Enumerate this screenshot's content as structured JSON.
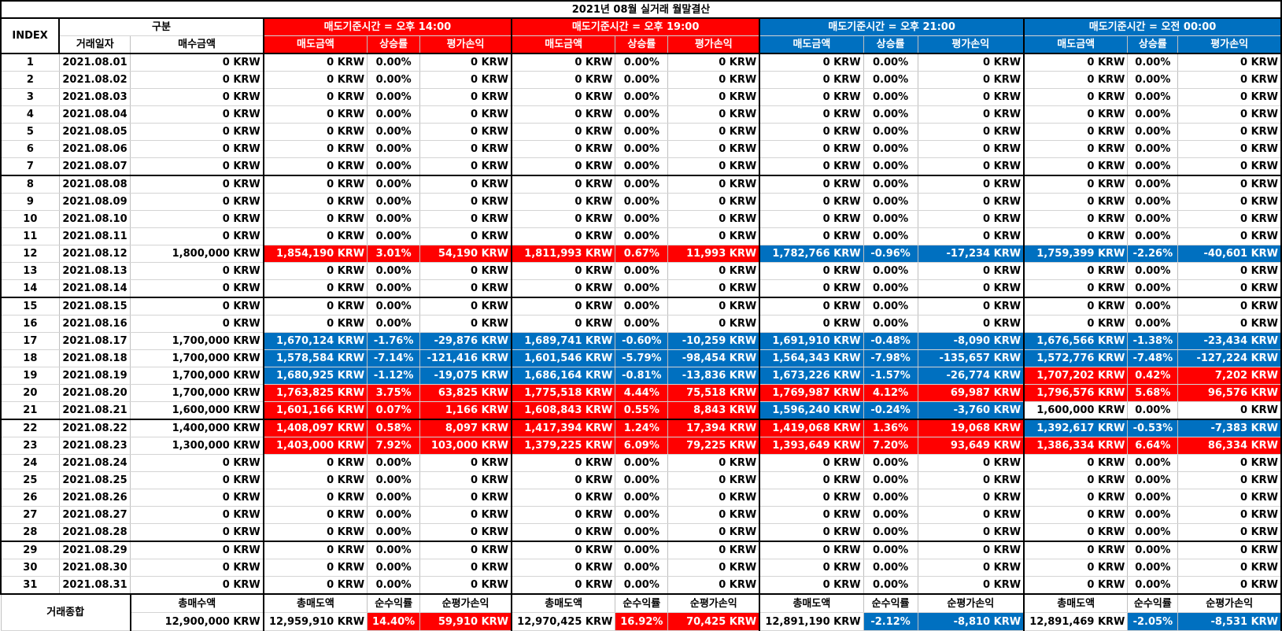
{
  "title": "2021년 08월 실거래 월말결산",
  "colors": {
    "red": "#ff0000",
    "blue": "#0070c0",
    "border": "#000000"
  },
  "header": {
    "index": "INDEX",
    "gubun": "구분",
    "date": "거래일자",
    "buy": "매수금액",
    "groups": [
      {
        "title": "매도기준시간 = 오후 14:00",
        "color": "red"
      },
      {
        "title": "매도기준시간 = 오후 19:00",
        "color": "red"
      },
      {
        "title": "매도기준시간 = 오후 21:00",
        "color": "blue"
      },
      {
        "title": "매도기준시간 = 오전 00:00",
        "color": "blue"
      }
    ],
    "sub": [
      "매도금액",
      "상승률",
      "평가손익"
    ]
  },
  "rows": [
    {
      "i": "1",
      "date": "2021.08.01",
      "buy": "0 KRW",
      "g": [
        [
          "0 KRW",
          "0.00%",
          "0 KRW",
          ""
        ],
        [
          "0 KRW",
          "0.00%",
          "0 KRW",
          ""
        ],
        [
          "0 KRW",
          "0.00%",
          "0 KRW",
          ""
        ],
        [
          "0 KRW",
          "0.00%",
          "0 KRW",
          ""
        ]
      ]
    },
    {
      "i": "2",
      "date": "2021.08.02",
      "buy": "0 KRW",
      "g": [
        [
          "0 KRW",
          "0.00%",
          "0 KRW",
          ""
        ],
        [
          "0 KRW",
          "0.00%",
          "0 KRW",
          ""
        ],
        [
          "0 KRW",
          "0.00%",
          "0 KRW",
          ""
        ],
        [
          "0 KRW",
          "0.00%",
          "0 KRW",
          ""
        ]
      ]
    },
    {
      "i": "3",
      "date": "2021.08.03",
      "buy": "0 KRW",
      "g": [
        [
          "0 KRW",
          "0.00%",
          "0 KRW",
          ""
        ],
        [
          "0 KRW",
          "0.00%",
          "0 KRW",
          ""
        ],
        [
          "0 KRW",
          "0.00%",
          "0 KRW",
          ""
        ],
        [
          "0 KRW",
          "0.00%",
          "0 KRW",
          ""
        ]
      ]
    },
    {
      "i": "4",
      "date": "2021.08.04",
      "buy": "0 KRW",
      "g": [
        [
          "0 KRW",
          "0.00%",
          "0 KRW",
          ""
        ],
        [
          "0 KRW",
          "0.00%",
          "0 KRW",
          ""
        ],
        [
          "0 KRW",
          "0.00%",
          "0 KRW",
          ""
        ],
        [
          "0 KRW",
          "0.00%",
          "0 KRW",
          ""
        ]
      ]
    },
    {
      "i": "5",
      "date": "2021.08.05",
      "buy": "0 KRW",
      "g": [
        [
          "0 KRW",
          "0.00%",
          "0 KRW",
          ""
        ],
        [
          "0 KRW",
          "0.00%",
          "0 KRW",
          ""
        ],
        [
          "0 KRW",
          "0.00%",
          "0 KRW",
          ""
        ],
        [
          "0 KRW",
          "0.00%",
          "0 KRW",
          ""
        ]
      ]
    },
    {
      "i": "6",
      "date": "2021.08.06",
      "buy": "0 KRW",
      "g": [
        [
          "0 KRW",
          "0.00%",
          "0 KRW",
          ""
        ],
        [
          "0 KRW",
          "0.00%",
          "0 KRW",
          ""
        ],
        [
          "0 KRW",
          "0.00%",
          "0 KRW",
          ""
        ],
        [
          "0 KRW",
          "0.00%",
          "0 KRW",
          ""
        ]
      ]
    },
    {
      "i": "7",
      "date": "2021.08.07",
      "buy": "0 KRW",
      "g": [
        [
          "0 KRW",
          "0.00%",
          "0 KRW",
          ""
        ],
        [
          "0 KRW",
          "0.00%",
          "0 KRW",
          ""
        ],
        [
          "0 KRW",
          "0.00%",
          "0 KRW",
          ""
        ],
        [
          "0 KRW",
          "0.00%",
          "0 KRW",
          ""
        ]
      ]
    },
    {
      "i": "8",
      "date": "2021.08.08",
      "buy": "0 KRW",
      "g": [
        [
          "0 KRW",
          "0.00%",
          "0 KRW",
          ""
        ],
        [
          "0 KRW",
          "0.00%",
          "0 KRW",
          ""
        ],
        [
          "0 KRW",
          "0.00%",
          "0 KRW",
          ""
        ],
        [
          "0 KRW",
          "0.00%",
          "0 KRW",
          ""
        ]
      ]
    },
    {
      "i": "9",
      "date": "2021.08.09",
      "buy": "0 KRW",
      "g": [
        [
          "0 KRW",
          "0.00%",
          "0 KRW",
          ""
        ],
        [
          "0 KRW",
          "0.00%",
          "0 KRW",
          ""
        ],
        [
          "0 KRW",
          "0.00%",
          "0 KRW",
          ""
        ],
        [
          "0 KRW",
          "0.00%",
          "0 KRW",
          ""
        ]
      ]
    },
    {
      "i": "10",
      "date": "2021.08.10",
      "buy": "0 KRW",
      "g": [
        [
          "0 KRW",
          "0.00%",
          "0 KRW",
          ""
        ],
        [
          "0 KRW",
          "0.00%",
          "0 KRW",
          ""
        ],
        [
          "0 KRW",
          "0.00%",
          "0 KRW",
          ""
        ],
        [
          "0 KRW",
          "0.00%",
          "0 KRW",
          ""
        ]
      ]
    },
    {
      "i": "11",
      "date": "2021.08.11",
      "buy": "0 KRW",
      "g": [
        [
          "0 KRW",
          "0.00%",
          "0 KRW",
          ""
        ],
        [
          "0 KRW",
          "0.00%",
          "0 KRW",
          ""
        ],
        [
          "0 KRW",
          "0.00%",
          "0 KRW",
          ""
        ],
        [
          "0 KRW",
          "0.00%",
          "0 KRW",
          ""
        ]
      ]
    },
    {
      "i": "12",
      "date": "2021.08.12",
      "buy": "1,800,000 KRW",
      "g": [
        [
          "1,854,190 KRW",
          "3.01%",
          "54,190 KRW",
          "red"
        ],
        [
          "1,811,993 KRW",
          "0.67%",
          "11,993 KRW",
          "red"
        ],
        [
          "1,782,766 KRW",
          "-0.96%",
          "-17,234 KRW",
          "blue"
        ],
        [
          "1,759,399 KRW",
          "-2.26%",
          "-40,601 KRW",
          "blue"
        ]
      ]
    },
    {
      "i": "13",
      "date": "2021.08.13",
      "buy": "0 KRW",
      "g": [
        [
          "0 KRW",
          "0.00%",
          "0 KRW",
          ""
        ],
        [
          "0 KRW",
          "0.00%",
          "0 KRW",
          ""
        ],
        [
          "0 KRW",
          "0.00%",
          "0 KRW",
          ""
        ],
        [
          "0 KRW",
          "0.00%",
          "0 KRW",
          ""
        ]
      ]
    },
    {
      "i": "14",
      "date": "2021.08.14",
      "buy": "0 KRW",
      "g": [
        [
          "0 KRW",
          "0.00%",
          "0 KRW",
          ""
        ],
        [
          "0 KRW",
          "0.00%",
          "0 KRW",
          ""
        ],
        [
          "0 KRW",
          "0.00%",
          "0 KRW",
          ""
        ],
        [
          "0 KRW",
          "0.00%",
          "0 KRW",
          ""
        ]
      ]
    },
    {
      "i": "15",
      "date": "2021.08.15",
      "buy": "0 KRW",
      "g": [
        [
          "0 KRW",
          "0.00%",
          "0 KRW",
          ""
        ],
        [
          "0 KRW",
          "0.00%",
          "0 KRW",
          ""
        ],
        [
          "0 KRW",
          "0.00%",
          "0 KRW",
          ""
        ],
        [
          "0 KRW",
          "0.00%",
          "0 KRW",
          ""
        ]
      ]
    },
    {
      "i": "16",
      "date": "2021.08.16",
      "buy": "0 KRW",
      "g": [
        [
          "0 KRW",
          "0.00%",
          "0 KRW",
          ""
        ],
        [
          "0 KRW",
          "0.00%",
          "0 KRW",
          ""
        ],
        [
          "0 KRW",
          "0.00%",
          "0 KRW",
          ""
        ],
        [
          "0 KRW",
          "0.00%",
          "0 KRW",
          ""
        ]
      ]
    },
    {
      "i": "17",
      "date": "2021.08.17",
      "buy": "1,700,000 KRW",
      "g": [
        [
          "1,670,124 KRW",
          "-1.76%",
          "-29,876 KRW",
          "blue"
        ],
        [
          "1,689,741 KRW",
          "-0.60%",
          "-10,259 KRW",
          "blue"
        ],
        [
          "1,691,910 KRW",
          "-0.48%",
          "-8,090 KRW",
          "blue"
        ],
        [
          "1,676,566 KRW",
          "-1.38%",
          "-23,434 KRW",
          "blue"
        ]
      ]
    },
    {
      "i": "18",
      "date": "2021.08.18",
      "buy": "1,700,000 KRW",
      "g": [
        [
          "1,578,584 KRW",
          "-7.14%",
          "-121,416 KRW",
          "blue"
        ],
        [
          "1,601,546 KRW",
          "-5.79%",
          "-98,454 KRW",
          "blue"
        ],
        [
          "1,564,343 KRW",
          "-7.98%",
          "-135,657 KRW",
          "blue"
        ],
        [
          "1,572,776 KRW",
          "-7.48%",
          "-127,224 KRW",
          "blue"
        ]
      ]
    },
    {
      "i": "19",
      "date": "2021.08.19",
      "buy": "1,700,000 KRW",
      "g": [
        [
          "1,680,925 KRW",
          "-1.12%",
          "-19,075 KRW",
          "blue"
        ],
        [
          "1,686,164 KRW",
          "-0.81%",
          "-13,836 KRW",
          "blue"
        ],
        [
          "1,673,226 KRW",
          "-1.57%",
          "-26,774 KRW",
          "blue"
        ],
        [
          "1,707,202 KRW",
          "0.42%",
          "7,202 KRW",
          "red"
        ]
      ]
    },
    {
      "i": "20",
      "date": "2021.08.20",
      "buy": "1,700,000 KRW",
      "g": [
        [
          "1,763,825 KRW",
          "3.75%",
          "63,825 KRW",
          "red"
        ],
        [
          "1,775,518 KRW",
          "4.44%",
          "75,518 KRW",
          "red"
        ],
        [
          "1,769,987 KRW",
          "4.12%",
          "69,987 KRW",
          "red"
        ],
        [
          "1,796,576 KRW",
          "5.68%",
          "96,576 KRW",
          "red"
        ]
      ]
    },
    {
      "i": "21",
      "date": "2021.08.21",
      "buy": "1,600,000 KRW",
      "g": [
        [
          "1,601,166 KRW",
          "0.07%",
          "1,166 KRW",
          "red"
        ],
        [
          "1,608,843 KRW",
          "0.55%",
          "8,843 KRW",
          "red"
        ],
        [
          "1,596,240 KRW",
          "-0.24%",
          "-3,760 KRW",
          "blue"
        ],
        [
          "1,600,000 KRW",
          "0.00%",
          "0 KRW",
          ""
        ]
      ]
    },
    {
      "i": "22",
      "date": "2021.08.22",
      "buy": "1,400,000 KRW",
      "g": [
        [
          "1,408,097 KRW",
          "0.58%",
          "8,097 KRW",
          "red"
        ],
        [
          "1,417,394 KRW",
          "1.24%",
          "17,394 KRW",
          "red"
        ],
        [
          "1,419,068 KRW",
          "1.36%",
          "19,068 KRW",
          "red"
        ],
        [
          "1,392,617 KRW",
          "-0.53%",
          "-7,383 KRW",
          "blue"
        ]
      ]
    },
    {
      "i": "23",
      "date": "2021.08.23",
      "buy": "1,300,000 KRW",
      "g": [
        [
          "1,403,000 KRW",
          "7.92%",
          "103,000 KRW",
          "red"
        ],
        [
          "1,379,225 KRW",
          "6.09%",
          "79,225 KRW",
          "red"
        ],
        [
          "1,393,649 KRW",
          "7.20%",
          "93,649 KRW",
          "red"
        ],
        [
          "1,386,334 KRW",
          "6.64%",
          "86,334 KRW",
          "red"
        ]
      ]
    },
    {
      "i": "24",
      "date": "2021.08.24",
      "buy": "0 KRW",
      "g": [
        [
          "0 KRW",
          "0.00%",
          "0 KRW",
          ""
        ],
        [
          "0 KRW",
          "0.00%",
          "0 KRW",
          ""
        ],
        [
          "0 KRW",
          "0.00%",
          "0 KRW",
          ""
        ],
        [
          "0 KRW",
          "0.00%",
          "0 KRW",
          ""
        ]
      ]
    },
    {
      "i": "25",
      "date": "2021.08.25",
      "buy": "0 KRW",
      "g": [
        [
          "0 KRW",
          "0.00%",
          "0 KRW",
          ""
        ],
        [
          "0 KRW",
          "0.00%",
          "0 KRW",
          ""
        ],
        [
          "0 KRW",
          "0.00%",
          "0 KRW",
          ""
        ],
        [
          "0 KRW",
          "0.00%",
          "0 KRW",
          ""
        ]
      ]
    },
    {
      "i": "26",
      "date": "2021.08.26",
      "buy": "0 KRW",
      "g": [
        [
          "0 KRW",
          "0.00%",
          "0 KRW",
          ""
        ],
        [
          "0 KRW",
          "0.00%",
          "0 KRW",
          ""
        ],
        [
          "0 KRW",
          "0.00%",
          "0 KRW",
          ""
        ],
        [
          "0 KRW",
          "0.00%",
          "0 KRW",
          ""
        ]
      ]
    },
    {
      "i": "27",
      "date": "2021.08.27",
      "buy": "0 KRW",
      "g": [
        [
          "0 KRW",
          "0.00%",
          "0 KRW",
          ""
        ],
        [
          "0 KRW",
          "0.00%",
          "0 KRW",
          ""
        ],
        [
          "0 KRW",
          "0.00%",
          "0 KRW",
          ""
        ],
        [
          "0 KRW",
          "0.00%",
          "0 KRW",
          ""
        ]
      ]
    },
    {
      "i": "28",
      "date": "2021.08.28",
      "buy": "0 KRW",
      "g": [
        [
          "0 KRW",
          "0.00%",
          "0 KRW",
          ""
        ],
        [
          "0 KRW",
          "0.00%",
          "0 KRW",
          ""
        ],
        [
          "0 KRW",
          "0.00%",
          "0 KRW",
          ""
        ],
        [
          "0 KRW",
          "0.00%",
          "0 KRW",
          ""
        ]
      ]
    },
    {
      "i": "29",
      "date": "2021.08.29",
      "buy": "0 KRW",
      "g": [
        [
          "0 KRW",
          "0.00%",
          "0 KRW",
          ""
        ],
        [
          "0 KRW",
          "0.00%",
          "0 KRW",
          ""
        ],
        [
          "0 KRW",
          "0.00%",
          "0 KRW",
          ""
        ],
        [
          "0 KRW",
          "0.00%",
          "0 KRW",
          ""
        ]
      ]
    },
    {
      "i": "30",
      "date": "2021.08.30",
      "buy": "0 KRW",
      "g": [
        [
          "0 KRW",
          "0.00%",
          "0 KRW",
          ""
        ],
        [
          "0 KRW",
          "0.00%",
          "0 KRW",
          ""
        ],
        [
          "0 KRW",
          "0.00%",
          "0 KRW",
          ""
        ],
        [
          "0 KRW",
          "0.00%",
          "0 KRW",
          ""
        ]
      ]
    },
    {
      "i": "31",
      "date": "2021.08.31",
      "buy": "0 KRW",
      "g": [
        [
          "0 KRW",
          "0.00%",
          "0 KRW",
          ""
        ],
        [
          "0 KRW",
          "0.00%",
          "0 KRW",
          ""
        ],
        [
          "0 KRW",
          "0.00%",
          "0 KRW",
          ""
        ],
        [
          "0 KRW",
          "0.00%",
          "0 KRW",
          ""
        ]
      ]
    }
  ],
  "footer": {
    "label": "거래종합",
    "total_buy_label": "총매수액",
    "total_buy": "12,900,000 KRW",
    "sub": [
      "총매도액",
      "순수익률",
      "순평가손익"
    ],
    "groups": [
      {
        "sell": "12,959,910 KRW",
        "rate": "14.40%",
        "pnl": "59,910 KRW",
        "color": "red"
      },
      {
        "sell": "12,970,425 KRW",
        "rate": "16.92%",
        "pnl": "70,425 KRW",
        "color": "red"
      },
      {
        "sell": "12,891,190 KRW",
        "rate": "-2.12%",
        "pnl": "-8,810 KRW",
        "color": "blue"
      },
      {
        "sell": "12,891,469 KRW",
        "rate": "-2.05%",
        "pnl": "-8,531 KRW",
        "color": "blue"
      }
    ]
  }
}
